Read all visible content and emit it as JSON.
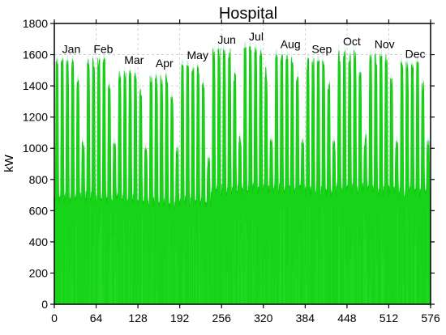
{
  "chart_data": {
    "type": "area",
    "title": "Hospital",
    "xlabel": "",
    "ylabel": "kW",
    "xlim": [
      0,
      576
    ],
    "ylim": [
      0,
      1800
    ],
    "xticks": [
      0,
      64,
      128,
      192,
      256,
      320,
      384,
      448,
      512,
      576
    ],
    "yticks": [
      0,
      200,
      400,
      600,
      800,
      1000,
      1200,
      1400,
      1600,
      1800
    ],
    "grid": true,
    "colors": {
      "fill": "#18d418",
      "stroke": "#0fc40f",
      "underlay": "#e8552a",
      "cap": "#c8f0d8",
      "grid": "#c8c8c8"
    },
    "month_labels": [
      {
        "label": "Jan",
        "x": 12,
        "y": 1590
      },
      {
        "label": "Feb",
        "x": 60,
        "y": 1590
      },
      {
        "label": "Mar",
        "x": 107,
        "y": 1520
      },
      {
        "label": "Apr",
        "x": 155,
        "y": 1500
      },
      {
        "label": "May",
        "x": 203,
        "y": 1550
      },
      {
        "label": "Jun",
        "x": 250,
        "y": 1650
      },
      {
        "label": "Jul",
        "x": 298,
        "y": 1670
      },
      {
        "label": "Aug",
        "x": 346,
        "y": 1620
      },
      {
        "label": "Sep",
        "x": 394,
        "y": 1590
      },
      {
        "label": "Oct",
        "x": 442,
        "y": 1640
      },
      {
        "label": "Nov",
        "x": 490,
        "y": 1620
      },
      {
        "label": "Dec",
        "x": 537,
        "y": 1560
      }
    ],
    "series": [
      {
        "months": [
          {
            "x0": 0,
            "weekday_peak": 1580,
            "friday_peak": 1440,
            "weekend": 1070,
            "night": 640
          },
          {
            "x0": 48,
            "weekday_peak": 1580,
            "friday_peak": 1440,
            "weekend": 1070,
            "night": 650
          },
          {
            "x0": 96,
            "weekday_peak": 1500,
            "friday_peak": 1380,
            "weekend": 1030,
            "night": 630
          },
          {
            "x0": 144,
            "weekday_peak": 1480,
            "friday_peak": 1350,
            "weekend": 1020,
            "night": 610
          },
          {
            "x0": 192,
            "weekday_peak": 1540,
            "friday_peak": 1420,
            "weekend": 970,
            "night": 620
          },
          {
            "x0": 240,
            "weekday_peak": 1640,
            "friday_peak": 1500,
            "weekend": 1110,
            "night": 690
          },
          {
            "x0": 288,
            "weekday_peak": 1660,
            "friday_peak": 1520,
            "weekend": 1090,
            "night": 700
          },
          {
            "x0": 336,
            "weekday_peak": 1610,
            "friday_peak": 1470,
            "weekend": 1090,
            "night": 700
          },
          {
            "x0": 384,
            "weekday_peak": 1580,
            "friday_peak": 1440,
            "weekend": 1070,
            "night": 680
          },
          {
            "x0": 432,
            "weekday_peak": 1630,
            "friday_peak": 1490,
            "weekend": 1100,
            "night": 700
          },
          {
            "x0": 480,
            "weekday_peak": 1610,
            "friday_peak": 1470,
            "weekend": 1080,
            "night": 690
          },
          {
            "x0": 528,
            "weekday_peak": 1560,
            "friday_peak": 1430,
            "weekend": 1090,
            "night": 680
          }
        ]
      }
    ]
  }
}
